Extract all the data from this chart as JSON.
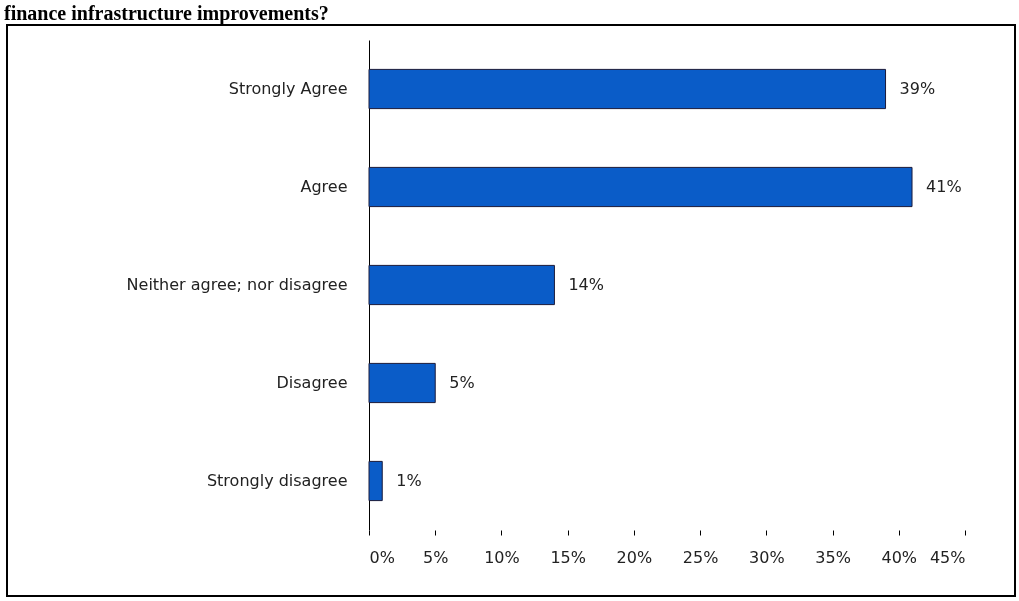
{
  "chart_data": {
    "type": "bar",
    "orientation": "horizontal",
    "title": "finance infrastructure improvements?",
    "categories": [
      "Strongly Agree",
      "Agree",
      "Neither agree; nor disagree",
      "Disagree",
      "Strongly disagree"
    ],
    "values": [
      39,
      41,
      14,
      5,
      1
    ],
    "value_labels": [
      "39%",
      "41%",
      "14%",
      "5%",
      "1%"
    ],
    "color": "#0a5cc8",
    "xlim": [
      0,
      45
    ],
    "xticks": [
      {
        "value": 0,
        "label": "0%"
      },
      {
        "value": 5,
        "label": "5%"
      },
      {
        "value": 10,
        "label": "10%"
      },
      {
        "value": 15,
        "label": "15%"
      },
      {
        "value": 20,
        "label": "20%"
      },
      {
        "value": 25,
        "label": "25%"
      },
      {
        "value": 30,
        "label": "30%"
      },
      {
        "value": 35,
        "label": "35%"
      },
      {
        "value": 40,
        "label": "40%"
      },
      {
        "value": 45,
        "label": "45%"
      }
    ],
    "grid": false
  }
}
